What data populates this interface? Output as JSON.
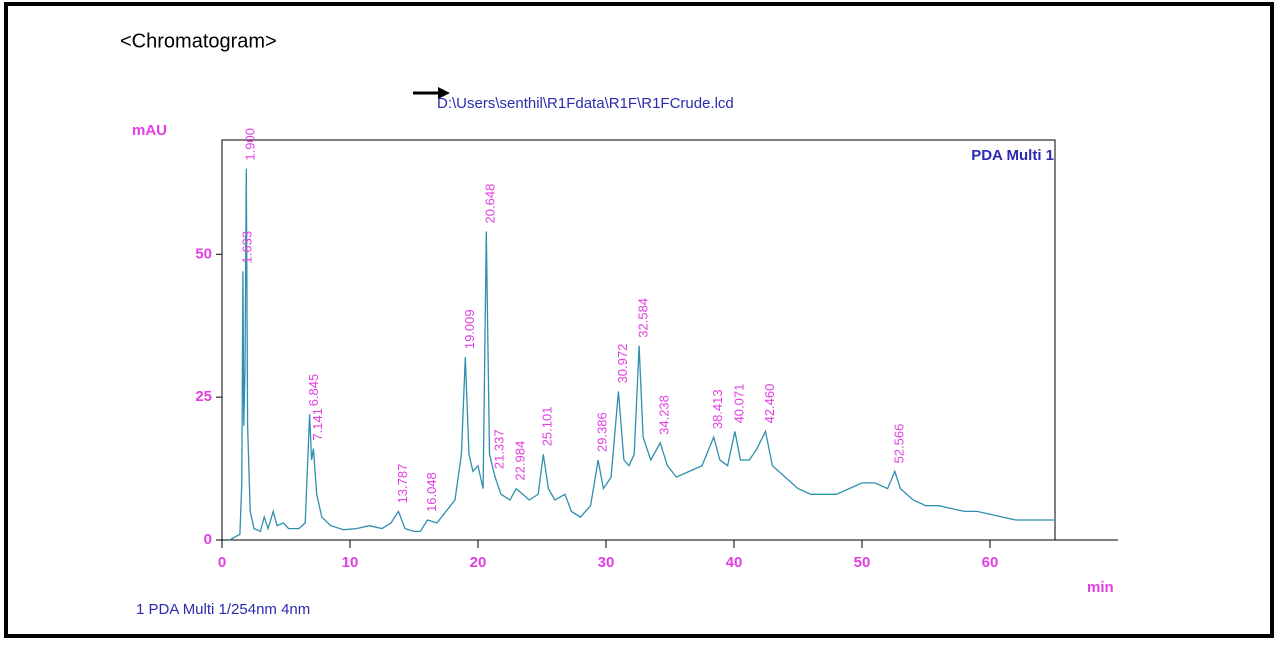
{
  "chart_data": {
    "type": "line",
    "title": "<Chromatogram>",
    "file_path": "D:\\Users\\senthil\\R1Fdata\\R1F\\R1FCrude.lcd",
    "y_label": "mAU",
    "x_label": "min",
    "channel_label": "PDA Multi 1",
    "legend": "1  PDA Multi 1/254nm 4nm",
    "color": "#2f8fae",
    "xlim": [
      0,
      70
    ],
    "ylim": [
      0,
      70
    ],
    "xticks": [
      0,
      10,
      20,
      30,
      40,
      50,
      60
    ],
    "yticks": [
      0,
      25,
      50
    ],
    "x": [
      0.6,
      1.0,
      1.4,
      1.55,
      1.633,
      1.7,
      1.8,
      1.9,
      2.0,
      2.2,
      2.5,
      3.0,
      3.3,
      3.6,
      4.0,
      4.3,
      4.8,
      5.2,
      6.0,
      6.5,
      6.845,
      7.0,
      7.141,
      7.4,
      7.8,
      8.5,
      9.5,
      10.5,
      11.5,
      12.5,
      13.2,
      13.787,
      14.3,
      15.0,
      15.5,
      16.048,
      16.8,
      17.5,
      18.2,
      18.7,
      19.009,
      19.3,
      19.6,
      20.0,
      20.4,
      20.648,
      20.9,
      21.337,
      21.8,
      22.5,
      22.984,
      23.5,
      24.0,
      24.7,
      25.101,
      25.5,
      26.0,
      26.8,
      27.3,
      28.0,
      28.8,
      29.386,
      29.8,
      30.4,
      30.972,
      31.4,
      31.8,
      32.2,
      32.584,
      32.9,
      33.5,
      34.238,
      34.8,
      35.5,
      36.5,
      37.5,
      38.413,
      38.9,
      39.5,
      40.071,
      40.5,
      41.2,
      41.8,
      42.46,
      43.0,
      44.0,
      45.0,
      46.0,
      47.0,
      48.0,
      49.0,
      50.0,
      51.0,
      52.0,
      52.566,
      53.0,
      54.0,
      55.0,
      56.0,
      57.0,
      58.0,
      59.0,
      60.0,
      61.0,
      62.0,
      63.0,
      64.0,
      65.0
    ],
    "values": [
      0,
      0.5,
      1,
      10,
      47,
      20,
      30,
      65,
      20,
      5,
      2,
      1.5,
      4,
      2,
      5,
      2.5,
      3,
      2,
      2,
      3,
      22,
      14,
      16,
      8,
      4,
      2.5,
      1.8,
      2,
      2.5,
      2,
      3,
      5,
      2,
      1.5,
      1.5,
      3.5,
      3,
      5,
      7,
      15,
      32,
      15,
      12,
      13,
      9,
      54,
      15,
      11,
      8,
      7,
      9,
      8,
      7,
      8,
      15,
      9,
      7,
      8,
      5,
      4,
      6,
      14,
      9,
      11,
      26,
      14,
      13,
      15,
      34,
      18,
      14,
      17,
      13,
      11,
      12,
      13,
      18,
      14,
      13,
      19,
      14,
      14,
      16,
      19,
      13,
      11,
      9,
      8,
      8,
      8,
      9,
      10,
      10,
      9,
      12,
      9,
      7,
      6,
      6,
      5.5,
      5,
      5,
      4.5,
      4,
      3.5,
      3.5,
      3.5,
      3.5
    ],
    "peaks": [
      {
        "value": 1.9,
        "label": "1.900"
      },
      {
        "value": 1.633,
        "label": "1.633"
      },
      {
        "value": 6.845,
        "label": "6.845"
      },
      {
        "value": 7.141,
        "label": "7.141"
      },
      {
        "value": 13.787,
        "label": "13.787"
      },
      {
        "value": 16.048,
        "label": "16.048"
      },
      {
        "value": 19.009,
        "label": "19.009"
      },
      {
        "value": 20.648,
        "label": "20.648"
      },
      {
        "value": 21.337,
        "label": "21.337"
      },
      {
        "value": 22.984,
        "label": "22.984"
      },
      {
        "value": 25.101,
        "label": "25.101"
      },
      {
        "value": 29.386,
        "label": "29.386"
      },
      {
        "value": 30.972,
        "label": "30.972"
      },
      {
        "value": 32.584,
        "label": "32.584"
      },
      {
        "value": 34.238,
        "label": "34.238"
      },
      {
        "value": 38.413,
        "label": "38.413"
      },
      {
        "value": 40.071,
        "label": "40.071"
      },
      {
        "value": 42.46,
        "label": "42.460"
      },
      {
        "value": 52.566,
        "label": "52.566"
      }
    ]
  }
}
